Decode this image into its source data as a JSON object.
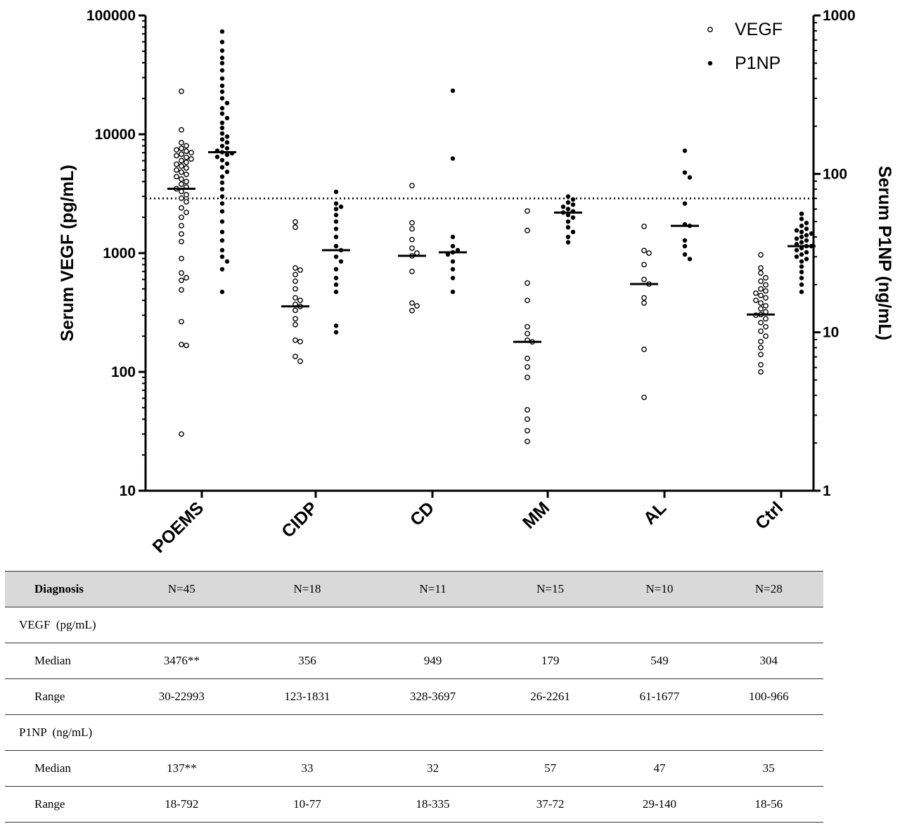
{
  "chart_data": {
    "type": "scatter",
    "categories": [
      "POEMS",
      "CIDP",
      "CD",
      "MM",
      "AL",
      "Ctrl"
    ],
    "y_left": {
      "label": "Serum VEGF (pg/mL)",
      "scale": "log",
      "lim": [
        10,
        100000
      ],
      "ticks": [
        "10",
        "100",
        "1000",
        "10000",
        "100000"
      ]
    },
    "y_right": {
      "label": "Serum P1NP (ng/mL)",
      "scale": "log",
      "lim": [
        1,
        1000
      ],
      "ticks": [
        "1",
        "10",
        "100",
        "1000"
      ]
    },
    "threshold_line": {
      "axis": "right",
      "value": 70,
      "style": "dotted"
    },
    "legend": [
      {
        "name": "VEGF",
        "marker": "open-circle"
      },
      {
        "name": "P1NP",
        "marker": "filled-circle"
      }
    ],
    "series": [
      {
        "name": "VEGF",
        "axis": "left",
        "marker": "open",
        "medians": [
          3476,
          356,
          949,
          179,
          549,
          304
        ],
        "values": [
          [
            30,
            167,
            170,
            265,
            490,
            590,
            620,
            680,
            900,
            1250,
            1450,
            1700,
            2000,
            2200,
            2400,
            2700,
            2900,
            3100,
            3300,
            3476,
            3600,
            3800,
            4000,
            4200,
            4400,
            4600,
            4800,
            5000,
            5200,
            5400,
            5600,
            5800,
            6000,
            6200,
            6400,
            6600,
            6800,
            7000,
            7200,
            7400,
            7600,
            8000,
            8500,
            10900,
            22993
          ],
          [
            123,
            135,
            180,
            185,
            250,
            280,
            330,
            356,
            370,
            400,
            420,
            500,
            580,
            660,
            720,
            750,
            1650,
            1831
          ],
          [
            328,
            360,
            380,
            700,
            949,
            1000,
            1100,
            1300,
            1600,
            1800,
            3697
          ],
          [
            26,
            32,
            40,
            48,
            90,
            110,
            130,
            179,
            185,
            210,
            240,
            400,
            560,
            1550,
            2261
          ],
          [
            61,
            155,
            380,
            420,
            549,
            600,
            800,
            1000,
            1050,
            1677
          ],
          [
            100,
            115,
            140,
            160,
            180,
            200,
            220,
            240,
            260,
            280,
            300,
            304,
            320,
            340,
            360,
            380,
            400,
            420,
            440,
            460,
            480,
            500,
            540,
            580,
            620,
            680,
            750,
            966
          ]
        ]
      },
      {
        "name": "P1NP",
        "axis": "right",
        "marker": "filled",
        "medians": [
          137,
          33,
          32,
          57,
          47,
          35
        ],
        "values": [
          [
            18,
            25,
            28,
            30,
            33,
            38,
            43,
            50,
            58,
            65,
            72,
            80,
            88,
            96,
            103,
            110,
            116,
            122,
            128,
            132,
            135,
            137,
            140,
            145,
            150,
            158,
            165,
            172,
            180,
            195,
            210,
            225,
            240,
            260,
            280,
            300,
            330,
            360,
            400,
            450,
            500,
            540,
            600,
            680,
            792
          ],
          [
            10,
            11,
            18,
            20,
            22,
            25,
            28,
            30,
            33,
            35,
            40,
            45,
            50,
            55,
            60,
            62,
            65,
            77
          ],
          [
            18,
            22,
            25,
            28,
            31,
            32,
            33,
            35,
            40,
            125,
            335
          ],
          [
            37,
            40,
            43,
            46,
            50,
            53,
            55,
            57,
            58,
            60,
            62,
            64,
            66,
            69,
            72
          ],
          [
            29,
            31,
            35,
            38,
            47,
            48,
            65,
            95,
            102,
            140
          ],
          [
            18,
            20,
            22,
            24,
            26,
            28,
            29,
            30,
            31,
            32,
            33,
            34,
            35,
            35,
            36,
            37,
            38,
            39,
            40,
            41,
            42,
            43,
            44,
            45,
            47,
            49,
            52,
            56
          ]
        ]
      }
    ]
  },
  "table": {
    "header": {
      "label": "Diagnosis",
      "values": [
        "N=45",
        "N=18",
        "N=11",
        "N=15",
        "N=10",
        "N=28"
      ]
    },
    "vegf_title": "VEGF  (pg/mL)",
    "vegf_median": {
      "label": "Median",
      "values": [
        "3476**",
        "356",
        "949",
        "179",
        "549",
        "304"
      ]
    },
    "vegf_range": {
      "label": "Range",
      "values": [
        "30-22993",
        "123-1831",
        "328-3697",
        "26-2261",
        "61-1677",
        "100-966"
      ]
    },
    "p1np_title": "P1NP  (ng/mL)",
    "p1np_median": {
      "label": "Median",
      "values": [
        "137**",
        "33",
        "32",
        "57",
        "47",
        "35"
      ]
    },
    "p1np_range": {
      "label": "Range",
      "values": [
        "18-792",
        "10-77",
        "18-335",
        "37-72",
        "29-140",
        "18-56"
      ]
    }
  }
}
